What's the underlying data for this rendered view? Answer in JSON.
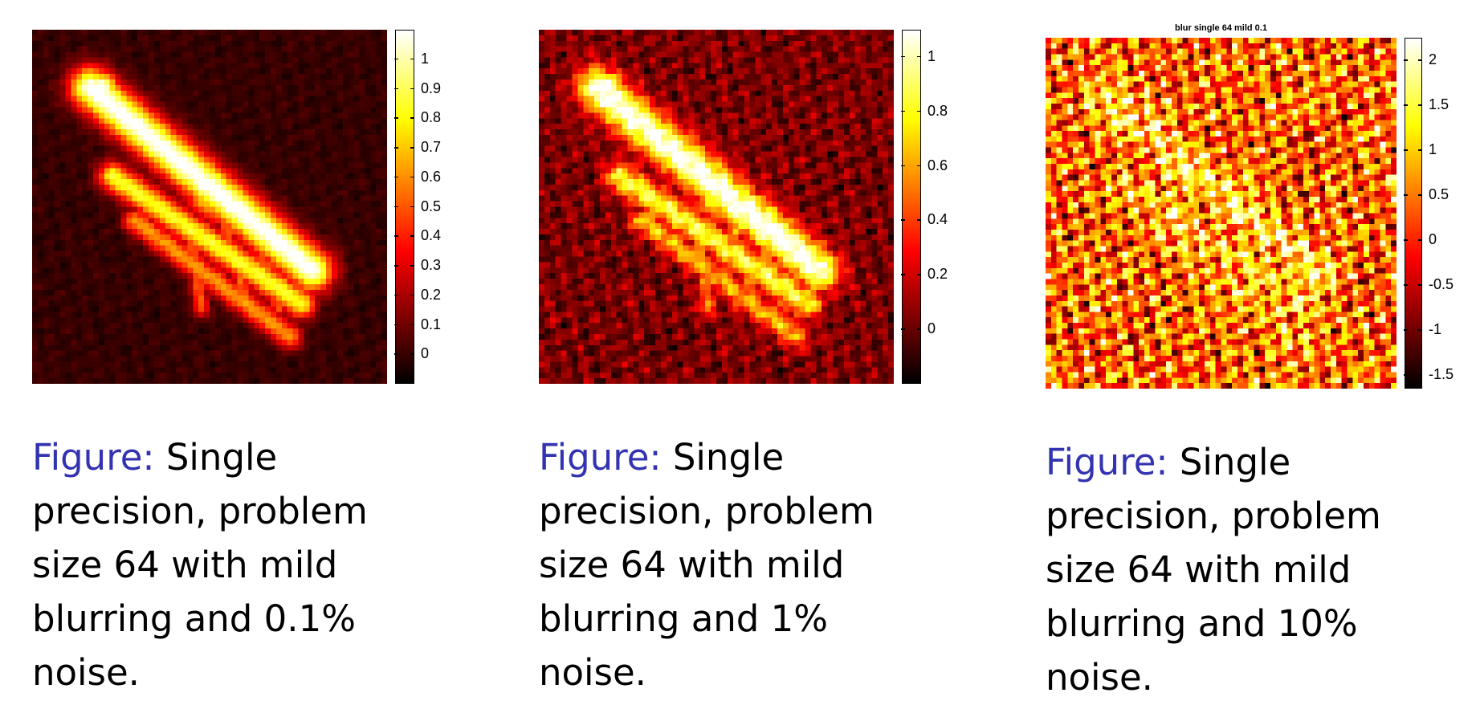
{
  "panels": [
    {
      "id": "p1",
      "title": "",
      "colorbar": {
        "ticks": [
          "1",
          "0.9",
          "0.8",
          "0.7",
          "0.6",
          "0.5",
          "0.4",
          "0.3",
          "0.2",
          "0.1",
          "0"
        ],
        "min": -0.1,
        "max": 1.1
      },
      "caption_label": "Figure:",
      "caption_text": " Single precision, problem size 64 with mild blurring and 0.1% noise."
    },
    {
      "id": "p2",
      "title": "",
      "colorbar": {
        "ticks": [
          "1",
          "0.8",
          "0.6",
          "0.4",
          "0.2",
          "0"
        ],
        "min": -0.2,
        "max": 1.1
      },
      "caption_label": "Figure:",
      "caption_text": " Single precision, problem size 64 with mild blurring and 1% noise."
    },
    {
      "id": "p3",
      "title": "blur single 64 mild 0.1",
      "colorbar": {
        "ticks": [
          "2",
          "1.5",
          "1",
          "0.5",
          "0",
          "-0.5",
          "-1",
          "-1.5"
        ],
        "min": -1.65,
        "max": 2.25
      },
      "caption_label": "Figure:",
      "caption_text": " Single precision, problem size 64 with mild blurring and 10% noise."
    }
  ],
  "chart_data": [
    {
      "type": "heatmap",
      "title": "",
      "colormap": "hot",
      "grid": "64x64",
      "clim": [
        -0.1,
        1.1
      ],
      "colorbar_ticks": [
        1,
        0.9,
        0.8,
        0.7,
        0.6,
        0.5,
        0.4,
        0.3,
        0.2,
        0.1,
        0
      ]
    },
    {
      "type": "heatmap",
      "title": "",
      "colormap": "hot",
      "grid": "64x64",
      "clim": [
        -0.2,
        1.1
      ],
      "colorbar_ticks": [
        1,
        0.8,
        0.6,
        0.4,
        0.2,
        0
      ]
    },
    {
      "type": "heatmap",
      "title": "blur single 64 mild 0.1",
      "colormap": "hot",
      "grid": "64x64",
      "clim": [
        -1.65,
        2.25
      ],
      "colorbar_ticks": [
        2,
        1.5,
        1,
        0.5,
        0,
        -0.5,
        -1,
        -1.5
      ]
    }
  ]
}
